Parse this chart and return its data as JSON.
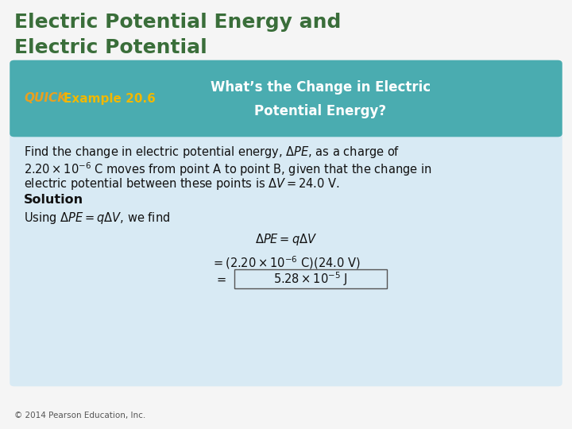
{
  "title_line1": "Electric Potential Energy and",
  "title_line2": "Electric Potential",
  "title_color": "#3a6e3a",
  "bg_color": "#f5f5f5",
  "header_bg_color": "#4aacb0",
  "header_quick_color": "#e8a020",
  "header_example_color": "#f0b800",
  "header_text_color": "#ffffff",
  "content_bg_color": "#d8eaf4",
  "quick_label": "QUICK",
  "example_label": "Example 20.6",
  "header_title1": "What’s the Change in Electric",
  "header_title2": "Potential Energy?",
  "copyright": "© 2014 Pearson Education, Inc."
}
